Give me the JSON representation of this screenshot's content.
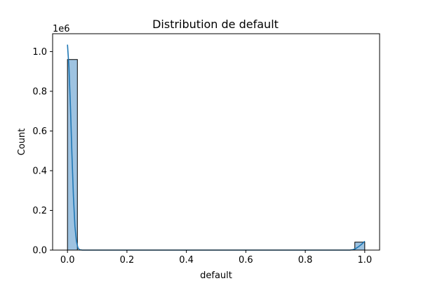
{
  "chart_data": {
    "type": "bar",
    "title": "Distribution de default",
    "xlabel": "default",
    "ylabel": "Count",
    "y_offset_label": "1e6",
    "xlim": [
      -0.05,
      1.05
    ],
    "ylim": [
      0,
      1.09
    ],
    "x_ticks": [
      0.0,
      0.2,
      0.4,
      0.6,
      0.8,
      1.0
    ],
    "x_tick_labels": [
      "0.0",
      "0.2",
      "0.4",
      "0.6",
      "0.8",
      "1.0"
    ],
    "y_ticks": [
      0.0,
      0.2,
      0.4,
      0.6,
      0.8,
      1.0
    ],
    "y_tick_labels": [
      "0.0",
      "0.2",
      "0.4",
      "0.6",
      "0.8",
      "1.0"
    ],
    "bin_width": 0.0333,
    "bins": [
      {
        "x_start": 0.0,
        "count": 0.96
      },
      {
        "x_start": 0.9667,
        "count": 0.04
      }
    ],
    "kde": [
      [
        0.0,
        1.035
      ],
      [
        0.005,
        0.92
      ],
      [
        0.01,
        0.72
      ],
      [
        0.015,
        0.48
      ],
      [
        0.02,
        0.27
      ],
      [
        0.025,
        0.12
      ],
      [
        0.03,
        0.045
      ],
      [
        0.035,
        0.012
      ],
      [
        0.04,
        0.002
      ],
      [
        0.05,
        0.0
      ],
      [
        0.95,
        0.0
      ],
      [
        0.96,
        0.002
      ],
      [
        0.97,
        0.008
      ],
      [
        0.98,
        0.018
      ],
      [
        0.99,
        0.03
      ],
      [
        1.0,
        0.045
      ]
    ],
    "grid": false,
    "colors": {
      "bar_fill": "#8db8dc",
      "bar_edge": "#000000",
      "kde_line": "#1f77b4"
    }
  }
}
